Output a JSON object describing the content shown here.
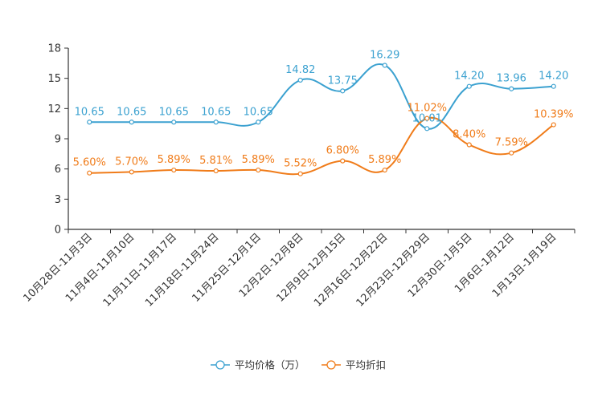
{
  "chart_data": {
    "type": "line",
    "title": "",
    "xlabel": "",
    "ylabel": "",
    "ylim": [
      0,
      18
    ],
    "yticks": [
      0,
      3,
      6,
      9,
      12,
      15,
      18
    ],
    "categories": [
      "10月28日-11月3日",
      "11月4日-11月10日",
      "11月11日-11月17日",
      "11月18日-11月24日",
      "11月25日-12月1日",
      "12月2日-12月8日",
      "12月9日-12月15日",
      "12月16日-12月22日",
      "12月23日-12月29日",
      "12月30日-1月5日",
      "1月6日-1月12日",
      "1月13日-1月19日"
    ],
    "series": [
      {
        "name": "平均价格（万）",
        "color": "#3ba1d0",
        "values": [
          10.65,
          10.65,
          10.65,
          10.65,
          10.65,
          14.82,
          13.75,
          16.29,
          10.01,
          14.2,
          13.96,
          14.2
        ],
        "labels": [
          "10.65",
          "10.65",
          "10.65",
          "10.65",
          "10.65",
          "14.82",
          "13.75",
          "16.29",
          "10.01",
          "14.20",
          "13.96",
          "14.20"
        ]
      },
      {
        "name": "平均折扣",
        "color": "#f07c1a",
        "values": [
          5.6,
          5.7,
          5.89,
          5.81,
          5.89,
          5.52,
          6.8,
          5.89,
          11.02,
          8.4,
          7.59,
          10.39
        ],
        "labels": [
          "5.60%",
          "5.70%",
          "5.89%",
          "5.81%",
          "5.89%",
          "5.52%",
          "6.80%",
          "5.89%",
          "11.02%",
          "8.40%",
          "7.59%",
          "10.39%"
        ]
      }
    ],
    "legend_position": "bottom-center",
    "grid": false
  }
}
